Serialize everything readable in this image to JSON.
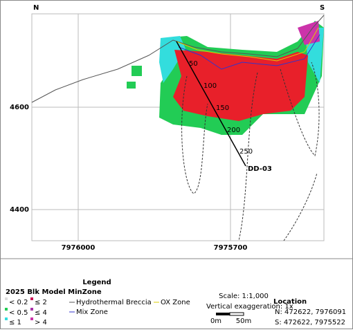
{
  "map": {
    "north_label": "N",
    "south_label": "S",
    "y_labels": [
      "4600",
      "4400"
    ],
    "x_labels": [
      "7976000",
      "7975700"
    ],
    "drillhole": {
      "name": "DD-03",
      "depths": [
        "50",
        "100",
        "150",
        "200",
        "250"
      ]
    }
  },
  "legend": {
    "title": "Legend",
    "model_title": "2025 Blk Model MinZone",
    "grades": [
      "< 0.2",
      "≤ 2",
      "< 0.5",
      "≤ 4",
      "≤ 1",
      "> 4"
    ],
    "lines": [
      "Hydrothermal Breccia",
      "OX Zone",
      "Mix Zone"
    ],
    "scale": "Scale: 1:1,000",
    "exaggeration": "Vertical exaggeration: 1x",
    "scale_start": "0m",
    "scale_end": "50m",
    "location_title": "Location",
    "location_n": "N: 472622, 7976091",
    "location_s": "S: 472622, 7975522"
  }
}
